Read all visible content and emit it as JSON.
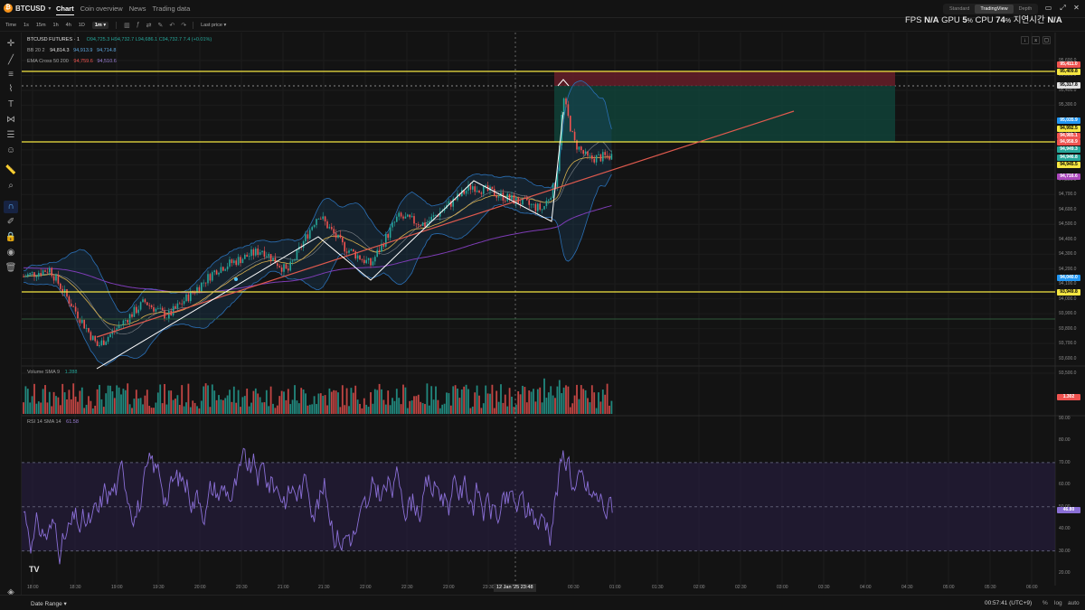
{
  "app": {
    "symbol": "BTCUSD",
    "symbol_caret": "▾",
    "nav_tabs": [
      "Chart",
      "Coin overview",
      "News",
      "Trading data"
    ],
    "active_tab": "Chart",
    "view_modes": [
      "Standard",
      "TradingView",
      "Depth"
    ],
    "active_view": "TradingView",
    "window_icons": [
      "minimize-icon",
      "maximize-icon",
      "close-icon"
    ]
  },
  "perf_overlay": {
    "fps_label": "FPS",
    "fps_value": "N/A",
    "gpu_label": "GPU",
    "gpu_value": "5",
    "cpu_label": "CPU",
    "cpu_value": "74",
    "percent_suffix": "%",
    "latency_label": "지연시간",
    "latency_value": "N/A"
  },
  "toolbar": {
    "time_label": "Time",
    "intervals": [
      "1s",
      "15m",
      "1h",
      "4h",
      "1D",
      "1m"
    ],
    "active_interval": "1m",
    "interval_caret": "▾",
    "price_type": "Last price",
    "price_type_caret": "▾"
  },
  "legend": {
    "symbol_line": "BTCUSD FUTURES · 1",
    "ohlc": "O94,725.3  H94,732.7  L94,686.1  C94,732.7  7.4 (+0.01%)",
    "bb_label": "BB 20 2",
    "bb_mid": "94,814.3",
    "bb_upper": "94,913.9",
    "bb_lower": "94,714.8",
    "ema_label": "EMA Cross 50 200",
    "ema_fast": "94,759.6",
    "ema_slow": "94,510.6"
  },
  "volume_legend": {
    "label": "Volume SMA 9",
    "value": "1.288",
    "tag": "1.302"
  },
  "rsi_legend": {
    "label": "RSI 14 SMA 14",
    "value": "61.58",
    "tag": "46.80"
  },
  "price_axis": [
    "95,600.0",
    "95,500.0",
    "95,400.0",
    "95,300.0",
    "95,200.0",
    "95,100.0",
    "95,000.0",
    "94,900.0",
    "94,800.0",
    "94,700.0",
    "94,600.0",
    "94,500.0",
    "94,400.0",
    "94,300.0",
    "94,200.0",
    "94,100.0",
    "94,000.0",
    "93,900.0",
    "93,800.0",
    "93,700.0",
    "93,600.0",
    "93,500.0"
  ],
  "rsi_axis": [
    "90.00",
    "80.00",
    "70.00",
    "60.00",
    "50.00",
    "40.00",
    "30.00",
    "20.00"
  ],
  "price_tags": [
    {
      "text": "95,411.0",
      "color": "#ef5350"
    },
    {
      "text": "95,409.8",
      "color": "#f5e642"
    },
    {
      "text": "95,317.8",
      "color": "#e0e0e0"
    },
    {
      "text": "95,035.9",
      "color": "#2196f3"
    },
    {
      "text": "94,992.5",
      "color": "#f5e642"
    },
    {
      "text": "94,985.1",
      "color": "#ef5350"
    },
    {
      "text": "94,958.9",
      "color": "#ef5350"
    },
    {
      "text": "94,949.3",
      "color": "#26a69a"
    },
    {
      "text": "94,946.8",
      "color": "#26a69a"
    },
    {
      "text": "94,945.5",
      "color": "#f5e642"
    },
    {
      "text": "94,716.6",
      "color": "#ab47bc"
    },
    {
      "text": "94,040.0",
      "color": "#2196f3"
    },
    {
      "text": "93,949.8",
      "color": "#f5e642"
    }
  ],
  "time_axis": [
    "18:00",
    "18:30",
    "19:00",
    "19:30",
    "20:00",
    "20:30",
    "21:00",
    "21:30",
    "22:00",
    "22:30",
    "23:00",
    "23:30",
    "00:30",
    "01:00",
    "01:30",
    "02:00",
    "02:30",
    "03:00",
    "03:30",
    "04:00",
    "04:30",
    "05:00",
    "05:30",
    "06:00"
  ],
  "crosshair_time": "12 Jan '25   23:48",
  "bottom": {
    "date_range": "Date Range",
    "date_range_caret": "▾",
    "clock": "00:57:41 (UTC+9)",
    "percent": "%",
    "log": "log",
    "auto": "auto"
  },
  "colors": {
    "up": "#26a69a",
    "down": "#ef5350",
    "hline": "#f5e642",
    "trend": "#e05a4e",
    "bb": "#2a6fb5",
    "ema_fast": "#d8b04c",
    "ema_slow": "#7d3cb5",
    "rsi": "#8a6fd6"
  }
}
